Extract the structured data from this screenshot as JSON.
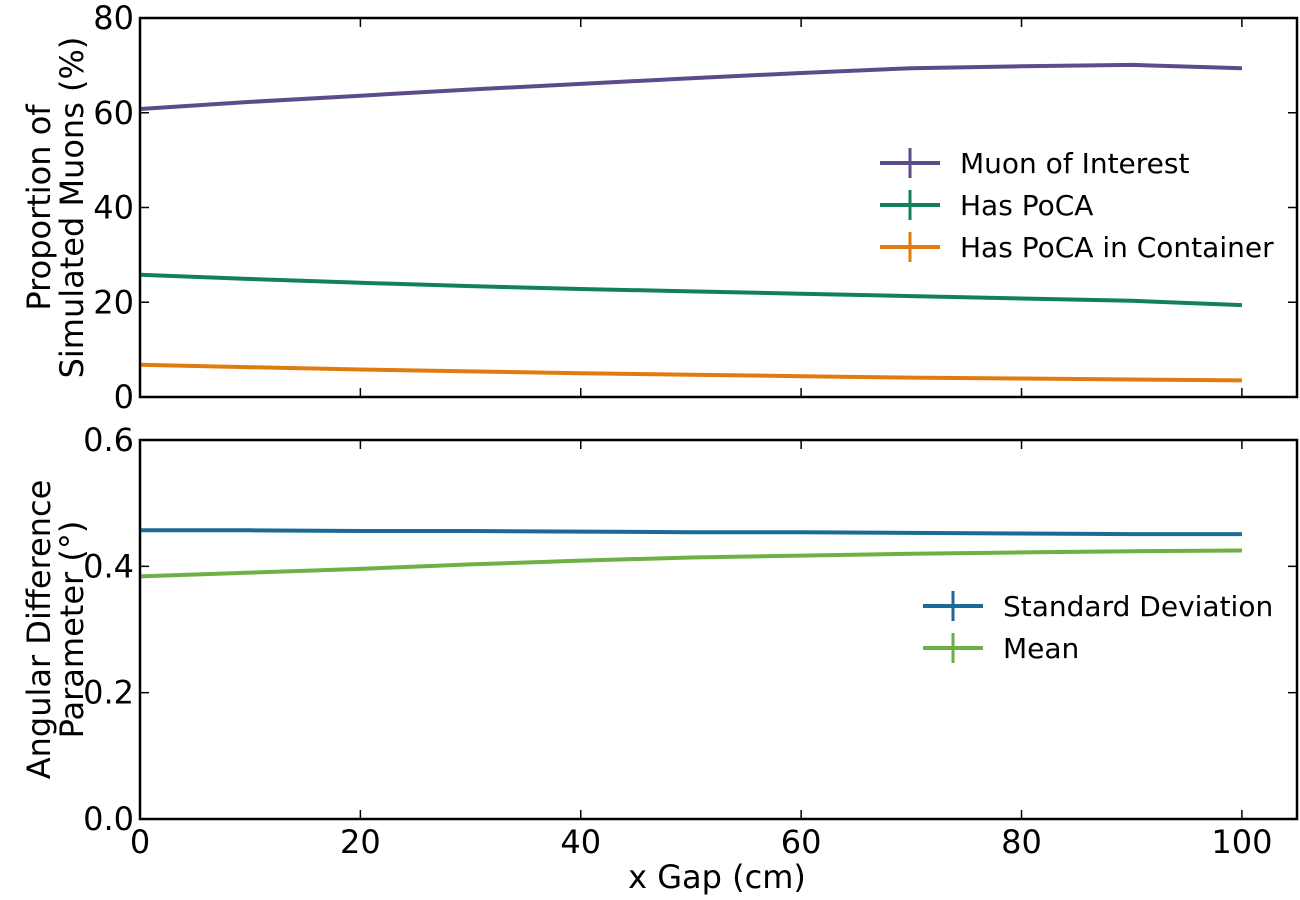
{
  "chart_data": {
    "type": "line",
    "shared_x_axis": {
      "label": "x Gap (cm)",
      "xlim": [
        0,
        105
      ],
      "ticks": [
        0,
        20,
        40,
        60,
        80,
        100
      ],
      "tick_labels": [
        "0",
        "20",
        "40",
        "60",
        "80",
        "100"
      ]
    },
    "panels": [
      {
        "id": "top",
        "ylabel": [
          "Proportion of",
          "Simulated Muons (%)"
        ],
        "ylim": [
          0,
          80
        ],
        "yticks": [
          0,
          20,
          40,
          60,
          80
        ],
        "ytick_labels": [
          "0",
          "20",
          "40",
          "60",
          "80"
        ],
        "grid": false,
        "legend_position": "center-right",
        "series": [
          {
            "name": "Muon of Interest",
            "color": "#5e4b8b",
            "x": [
              0,
              10,
              20,
              30,
              40,
              50,
              60,
              70,
              80,
              90,
              100
            ],
            "y": [
              60.8,
              62.3,
              63.6,
              64.9,
              66.1,
              67.3,
              68.4,
              69.4,
              69.8,
              70.1,
              69.4
            ]
          },
          {
            "name": "Has PoCA",
            "color": "#12805a",
            "x": [
              0,
              10,
              20,
              30,
              40,
              50,
              60,
              70,
              80,
              90,
              100
            ],
            "y": [
              25.8,
              24.9,
              24.1,
              23.4,
              22.8,
              22.3,
              21.8,
              21.3,
              20.8,
              20.3,
              19.4
            ]
          },
          {
            "name": "Has PoCA in Container",
            "color": "#e07b10",
            "x": [
              0,
              10,
              20,
              30,
              40,
              50,
              60,
              70,
              80,
              90,
              100
            ],
            "y": [
              6.8,
              6.3,
              5.8,
              5.4,
              5.0,
              4.7,
              4.4,
              4.1,
              3.9,
              3.7,
              3.5
            ]
          }
        ]
      },
      {
        "id": "bottom",
        "ylabel": [
          "Angular Difference",
          "Parameter (°)"
        ],
        "ylim": [
          0,
          0.6
        ],
        "yticks": [
          0,
          0.2,
          0.4,
          0.6
        ],
        "ytick_labels": [
          "0.0",
          "0.2",
          "0.4",
          "0.6"
        ],
        "grid": false,
        "legend_position": "center-right",
        "series": [
          {
            "name": "Standard Deviation",
            "color": "#1d6a96",
            "x": [
              0,
              10,
              20,
              30,
              40,
              50,
              60,
              70,
              80,
              90,
              100
            ],
            "y": [
              0.457,
              0.457,
              0.456,
              0.456,
              0.455,
              0.454,
              0.454,
              0.453,
              0.452,
              0.451,
              0.451
            ]
          },
          {
            "name": "Mean",
            "color": "#6eaf46",
            "x": [
              0,
              10,
              20,
              30,
              40,
              50,
              60,
              70,
              80,
              90,
              100
            ],
            "y": [
              0.384,
              0.39,
              0.396,
              0.403,
              0.409,
              0.414,
              0.417,
              0.42,
              0.422,
              0.424,
              0.425
            ]
          }
        ]
      }
    ]
  }
}
